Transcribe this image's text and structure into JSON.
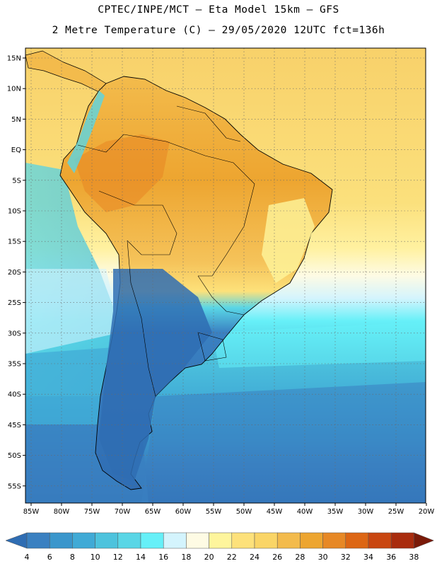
{
  "header": {
    "title_line1": "CPTEC/INPE/MCT –  Eta Model 15km – GFS",
    "title_line2": "2 Metre Temperature (C) – 29/05/2020 12UTC fct=136h"
  },
  "axes": {
    "lat_labels": [
      "15N",
      "10N",
      "5N",
      "EQ",
      "5S",
      "10S",
      "15S",
      "20S",
      "25S",
      "30S",
      "35S",
      "40S",
      "45S",
      "50S",
      "55S"
    ],
    "lon_labels": [
      "85W",
      "80W",
      "75W",
      "70W",
      "65W",
      "60W",
      "55W",
      "50W",
      "45W",
      "40W",
      "35W",
      "30W",
      "25W",
      "20W"
    ]
  },
  "colorbar": {
    "labels": [
      "4",
      "6",
      "8",
      "10",
      "12",
      "14",
      "16",
      "18",
      "20",
      "22",
      "24",
      "26",
      "28",
      "30",
      "32",
      "34",
      "36",
      "38"
    ],
    "colors": [
      "#2f6db3",
      "#3a80c1",
      "#3a96cc",
      "#40aad6",
      "#4dc3dd",
      "#59d6e6",
      "#66f0f8",
      "#d4f4fd",
      "#fefbe4",
      "#fef59c",
      "#fde17a",
      "#fad566",
      "#f3bb4c",
      "#eda530",
      "#e78825",
      "#dd6614",
      "#c94610",
      "#a92c0e",
      "#7a1a08"
    ]
  }
}
